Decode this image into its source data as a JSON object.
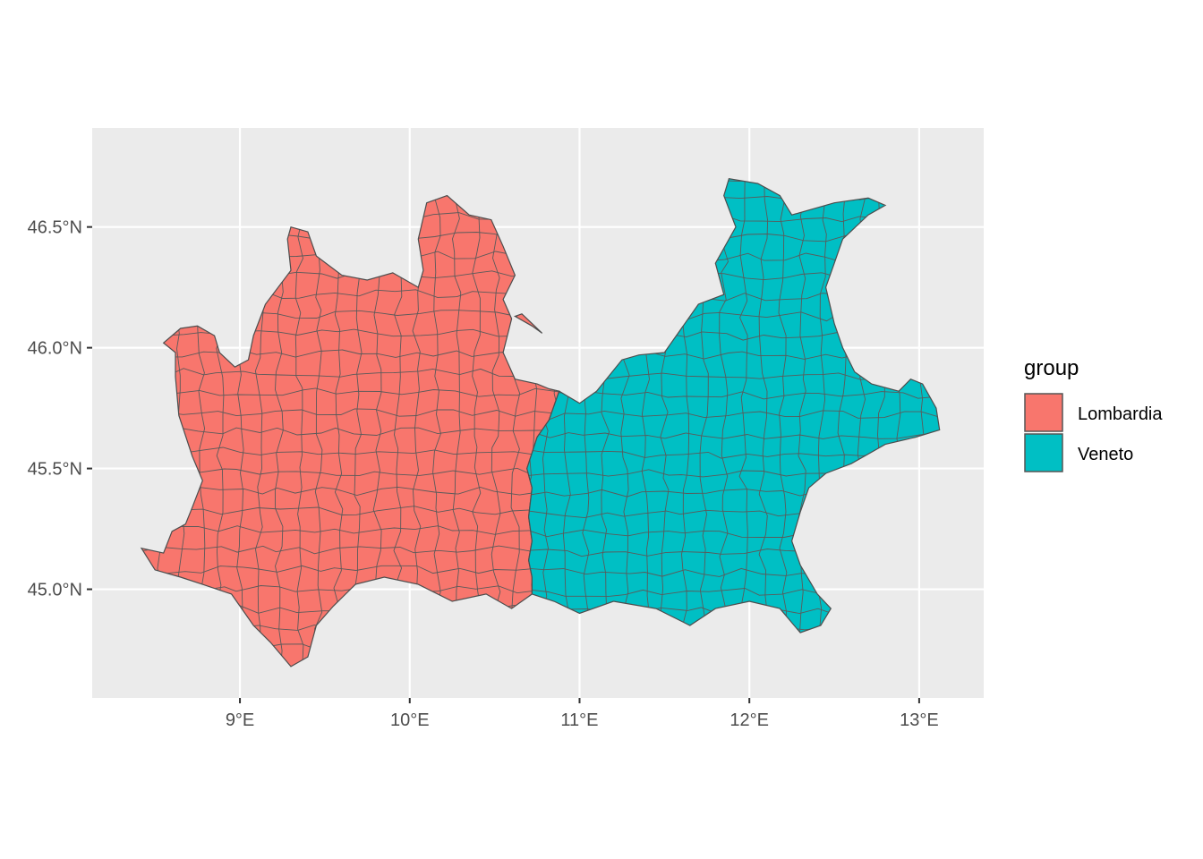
{
  "chart_data": {
    "type": "map",
    "xlabel": "",
    "ylabel": "",
    "xlim": [
      8.13,
      13.38
    ],
    "ylim": [
      44.55,
      46.91
    ],
    "x_ticks": [
      {
        "value": 9,
        "label": "9°E"
      },
      {
        "value": 10,
        "label": "10°E"
      },
      {
        "value": 11,
        "label": "11°E"
      },
      {
        "value": 12,
        "label": "12°E"
      },
      {
        "value": 13,
        "label": "13°E"
      }
    ],
    "y_ticks": [
      {
        "value": 45.0,
        "label": "45.0°N"
      },
      {
        "value": 45.5,
        "label": "45.5°N"
      },
      {
        "value": 46.0,
        "label": "46.0°N"
      },
      {
        "value": 46.5,
        "label": "46.5°N"
      }
    ],
    "grid": true,
    "legend": {
      "title": "group",
      "placement": "right",
      "entries": [
        {
          "label": "Lombardia",
          "color": "#f8766d"
        },
        {
          "label": "Veneto",
          "color": "#00bfc4"
        }
      ]
    },
    "regions": [
      {
        "name": "Lombardia",
        "color": "#f8766d",
        "outline": [
          [
            8.42,
            45.17
          ],
          [
            8.55,
            45.15
          ],
          [
            8.6,
            45.24
          ],
          [
            8.68,
            45.27
          ],
          [
            8.72,
            45.34
          ],
          [
            8.78,
            45.45
          ],
          [
            8.72,
            45.55
          ],
          [
            8.64,
            45.72
          ],
          [
            8.62,
            45.88
          ],
          [
            8.62,
            45.98
          ],
          [
            8.55,
            46.02
          ],
          [
            8.65,
            46.08
          ],
          [
            8.75,
            46.09
          ],
          [
            8.85,
            46.05
          ],
          [
            8.88,
            45.98
          ],
          [
            8.97,
            45.92
          ],
          [
            9.05,
            45.95
          ],
          [
            9.08,
            46.05
          ],
          [
            9.15,
            46.18
          ],
          [
            9.3,
            46.32
          ],
          [
            9.28,
            46.45
          ],
          [
            9.3,
            46.5
          ],
          [
            9.4,
            46.48
          ],
          [
            9.45,
            46.38
          ],
          [
            9.6,
            46.3
          ],
          [
            9.75,
            46.28
          ],
          [
            9.9,
            46.31
          ],
          [
            10.05,
            46.25
          ],
          [
            10.08,
            46.32
          ],
          [
            10.05,
            46.45
          ],
          [
            10.1,
            46.6
          ],
          [
            10.22,
            46.63
          ],
          [
            10.35,
            46.55
          ],
          [
            10.48,
            46.53
          ],
          [
            10.55,
            46.42
          ],
          [
            10.62,
            46.3
          ],
          [
            10.55,
            46.2
          ],
          [
            10.6,
            46.12
          ],
          [
            10.55,
            45.98
          ],
          [
            10.62,
            45.87
          ],
          [
            10.75,
            45.85
          ],
          [
            10.82,
            45.83
          ],
          [
            10.88,
            45.82
          ],
          [
            10.82,
            45.7
          ],
          [
            10.75,
            45.63
          ],
          [
            10.69,
            45.5
          ],
          [
            10.72,
            45.42
          ],
          [
            10.7,
            45.3
          ],
          [
            10.72,
            45.2
          ],
          [
            10.7,
            45.12
          ],
          [
            10.72,
            45.05
          ],
          [
            10.72,
            44.98
          ],
          [
            10.6,
            44.92
          ],
          [
            10.45,
            44.98
          ],
          [
            10.25,
            44.95
          ],
          [
            10.05,
            45.02
          ],
          [
            9.85,
            45.05
          ],
          [
            9.68,
            45.02
          ],
          [
            9.55,
            44.93
          ],
          [
            9.45,
            44.85
          ],
          [
            9.4,
            44.72
          ],
          [
            9.3,
            44.68
          ],
          [
            9.18,
            44.78
          ],
          [
            9.08,
            44.85
          ],
          [
            8.95,
            44.98
          ],
          [
            8.78,
            45.02
          ],
          [
            8.65,
            45.05
          ],
          [
            8.5,
            45.08
          ]
        ]
      },
      {
        "name": "Veneto",
        "color": "#00bfc4",
        "outline": [
          [
            10.69,
            45.5
          ],
          [
            10.75,
            45.63
          ],
          [
            10.82,
            45.7
          ],
          [
            10.88,
            45.82
          ],
          [
            11.0,
            45.77
          ],
          [
            11.1,
            45.82
          ],
          [
            11.25,
            45.95
          ],
          [
            11.35,
            45.97
          ],
          [
            11.5,
            45.98
          ],
          [
            11.6,
            46.08
          ],
          [
            11.7,
            46.18
          ],
          [
            11.85,
            46.22
          ],
          [
            11.8,
            46.35
          ],
          [
            11.92,
            46.5
          ],
          [
            11.85,
            46.63
          ],
          [
            11.88,
            46.7
          ],
          [
            12.05,
            46.68
          ],
          [
            12.18,
            46.63
          ],
          [
            12.25,
            46.55
          ],
          [
            12.5,
            46.6
          ],
          [
            12.7,
            46.62
          ],
          [
            12.8,
            46.59
          ],
          [
            12.7,
            46.55
          ],
          [
            12.55,
            46.45
          ],
          [
            12.5,
            46.35
          ],
          [
            12.45,
            46.25
          ],
          [
            12.5,
            46.1
          ],
          [
            12.55,
            46.0
          ],
          [
            12.62,
            45.9
          ],
          [
            12.72,
            45.85
          ],
          [
            12.88,
            45.82
          ],
          [
            12.95,
            45.87
          ],
          [
            13.02,
            45.85
          ],
          [
            13.1,
            45.75
          ],
          [
            13.12,
            45.66
          ],
          [
            12.98,
            45.63
          ],
          [
            12.8,
            45.6
          ],
          [
            12.6,
            45.52
          ],
          [
            12.45,
            45.48
          ],
          [
            12.35,
            45.42
          ],
          [
            12.3,
            45.32
          ],
          [
            12.25,
            45.2
          ],
          [
            12.3,
            45.1
          ],
          [
            12.4,
            44.98
          ],
          [
            12.48,
            44.92
          ],
          [
            12.42,
            44.85
          ],
          [
            12.3,
            44.82
          ],
          [
            12.18,
            44.92
          ],
          [
            12.0,
            44.95
          ],
          [
            11.8,
            44.92
          ],
          [
            11.65,
            44.85
          ],
          [
            11.45,
            44.92
          ],
          [
            11.2,
            44.95
          ],
          [
            11.0,
            44.9
          ],
          [
            10.85,
            44.95
          ],
          [
            10.72,
            44.98
          ],
          [
            10.72,
            45.05
          ],
          [
            10.7,
            45.12
          ],
          [
            10.72,
            45.2
          ],
          [
            10.7,
            45.3
          ],
          [
            10.72,
            45.42
          ]
        ]
      },
      {
        "name": "Lombardia",
        "color": "#f8766d",
        "outline": [
          [
            10.62,
            46.13
          ],
          [
            10.72,
            46.09
          ],
          [
            10.78,
            46.06
          ],
          [
            10.72,
            46.1
          ],
          [
            10.66,
            46.14
          ]
        ]
      }
    ]
  }
}
